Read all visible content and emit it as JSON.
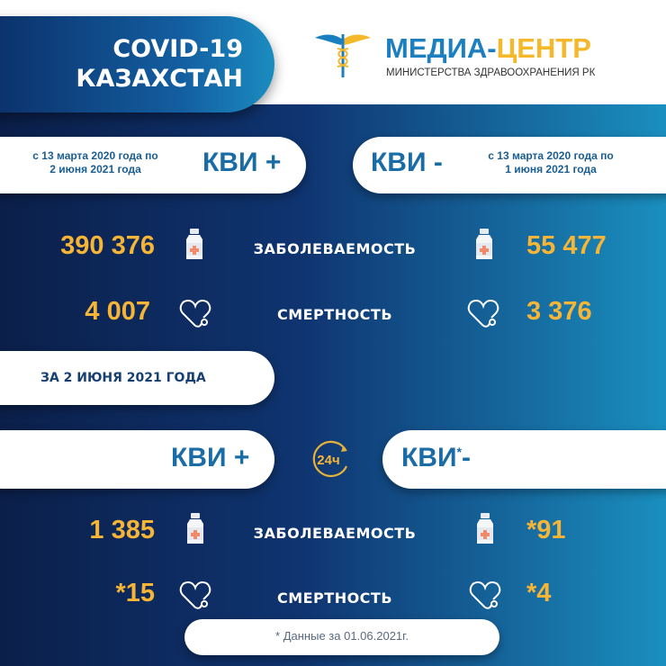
{
  "header": {
    "title_line1": "COVID-19",
    "title_line2": "КАЗАХСТАН",
    "logo_main_a": "МЕДИА-",
    "logo_main_b": "ЦЕНТР",
    "logo_sub": "МИНИСТЕРСТВА ЗДРАВООХРАНЕНИЯ РК"
  },
  "cumulative": {
    "positive": {
      "period_line1": "с 13 марта 2020 года по",
      "period_line2": "2 июня 2021 года",
      "label": "КВИ +",
      "cases": "390 376",
      "deaths": "4 007"
    },
    "negative": {
      "period_line1": "с 13 марта 2020 года по",
      "period_line2": "1 июня 2021 года",
      "label": "КВИ -",
      "cases": "55 477",
      "deaths": "3 376"
    },
    "cases_label": "ЗАБОЛЕВАЕМОСТЬ",
    "deaths_label": "СМЕРТНОСТЬ"
  },
  "daily": {
    "date_label": "ЗА 2 ИЮНЯ 2021 ГОДА",
    "icon_text": "24ч",
    "positive": {
      "label": "КВИ +",
      "cases": "1 385",
      "deaths": "*15"
    },
    "negative": {
      "label": "КВИ",
      "label_mark": "*",
      "label_suffix": "-",
      "cases": "*91",
      "deaths": "*4"
    },
    "cases_label": "ЗАБОЛЕВАЕМОСТЬ",
    "deaths_label": "СМЕРТНОСТЬ"
  },
  "footnote": "* Данные за 01.06.2021г.",
  "colors": {
    "accent_yellow": "#f6b536",
    "brand_blue": "#1a6ca6",
    "bg_dark": "#0b1f4a",
    "bg_teal": "#1a8fbf"
  },
  "icons": [
    "caduceus-logo",
    "bottle-icon",
    "heart-stethoscope-icon",
    "24h-clock-icon"
  ]
}
